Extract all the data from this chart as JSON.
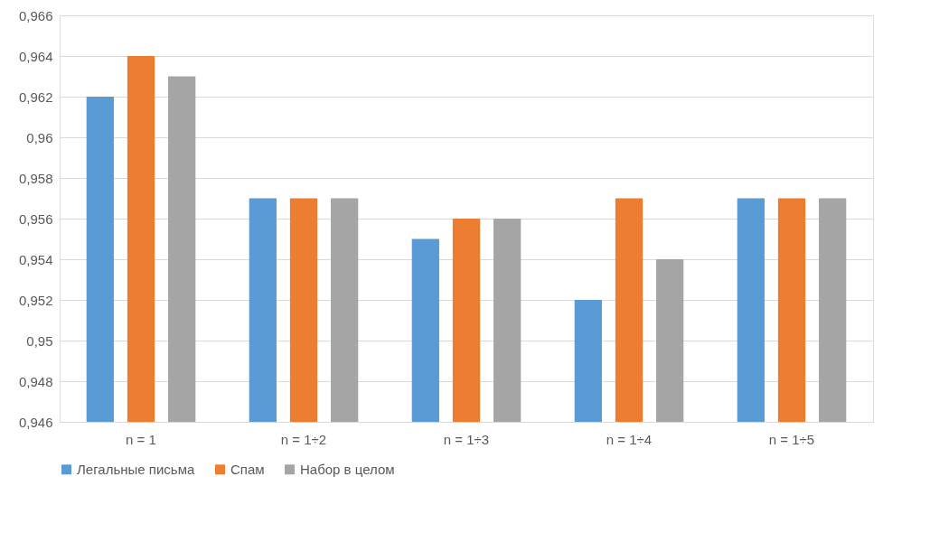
{
  "chart_data": {
    "type": "bar",
    "categories": [
      "n = 1",
      "n = 1÷2",
      "n = 1÷3",
      "n = 1÷4",
      "n = 1÷5"
    ],
    "series": [
      {
        "name": "Легальные письма",
        "color": "#5b9bd5",
        "values": [
          0.962,
          0.957,
          0.955,
          0.952,
          0.957
        ]
      },
      {
        "name": "Спам",
        "color": "#ed7d31",
        "values": [
          0.964,
          0.957,
          0.956,
          0.957,
          0.957
        ]
      },
      {
        "name": "Набор в целом",
        "color": "#a5a5a5",
        "values": [
          0.963,
          0.957,
          0.956,
          0.954,
          0.957
        ]
      }
    ],
    "ylim": [
      0.946,
      0.966
    ],
    "yticks": [
      {
        "value": 0.946,
        "label": "0,946"
      },
      {
        "value": 0.948,
        "label": "0,948"
      },
      {
        "value": 0.95,
        "label": "0,95"
      },
      {
        "value": 0.952,
        "label": "0,952"
      },
      {
        "value": 0.954,
        "label": "0,954"
      },
      {
        "value": 0.956,
        "label": "0,956"
      },
      {
        "value": 0.958,
        "label": "0,958"
      },
      {
        "value": 0.96,
        "label": "0,96"
      },
      {
        "value": 0.962,
        "label": "0,962"
      },
      {
        "value": 0.964,
        "label": "0,964"
      },
      {
        "value": 0.966,
        "label": "0,966"
      }
    ],
    "grid": "y",
    "legend": "bottom"
  }
}
